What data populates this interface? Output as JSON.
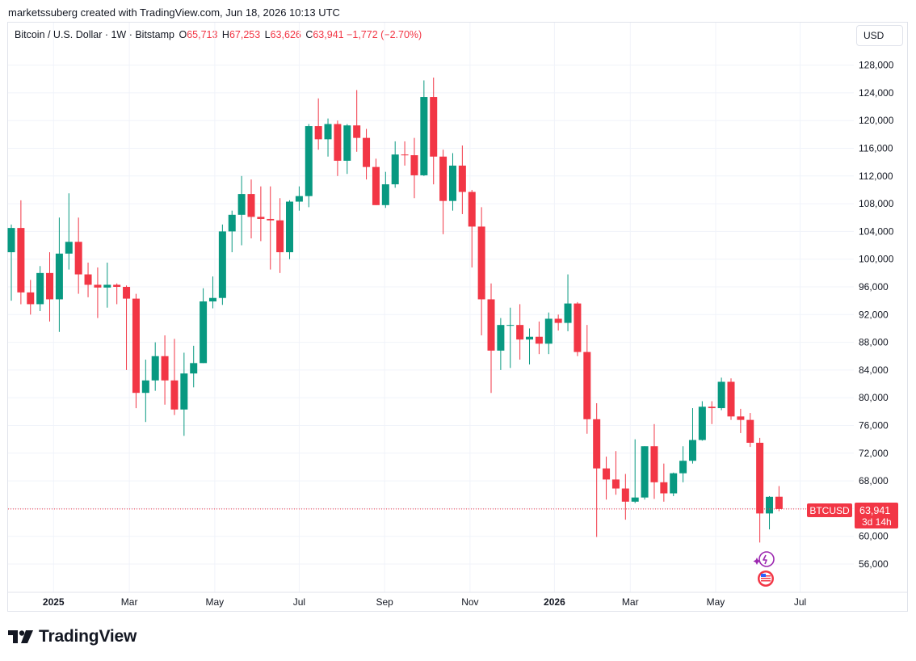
{
  "attribution": "marketssuberg created with TradingView.com, Jun 18, 2026 10:13 UTC",
  "legend": {
    "symbol": "Bitcoin / U.S. Dollar · 1W · Bitstamp",
    "o_label": "O",
    "o_value": "65,713",
    "h_label": "H",
    "h_value": "67,253",
    "l_label": "L",
    "l_value": "63,626",
    "c_label": "C",
    "c_value": "63,941",
    "change": "−1,772 (−2.70%)"
  },
  "currency_button": "USD",
  "price_tag": {
    "symbol": "BTCUSD",
    "price": "63,941",
    "countdown": "3d 14h"
  },
  "brand": "TradingView",
  "colors": {
    "up": "#089981",
    "down": "#f23645",
    "grid": "#f0f3fa",
    "text": "#131722"
  },
  "icons": [
    "tradingview-logo-icon",
    "ai-sparkle-icon",
    "us-flag-event-icon"
  ],
  "chart_data": {
    "type": "candlestick",
    "interval": "1W",
    "y_ticks": [
      56000,
      60000,
      64000,
      68000,
      72000,
      76000,
      80000,
      84000,
      88000,
      92000,
      96000,
      100000,
      104000,
      108000,
      112000,
      116000,
      120000,
      124000,
      128000
    ],
    "y_tick_labels": [
      "56,000",
      "60,000",
      "64,000",
      "68,000",
      "72,000",
      "76,000",
      "80,000",
      "84,000",
      "88,000",
      "92,000",
      "96,000",
      "100,000",
      "104,000",
      "108,000",
      "112,000",
      "116,000",
      "120,000",
      "124,000",
      "128,000"
    ],
    "x_labels": [
      {
        "label": "2025",
        "bold": true,
        "week": 4.4
      },
      {
        "label": "Mar",
        "bold": false,
        "week": 12.3
      },
      {
        "label": "May",
        "bold": false,
        "week": 21.2
      },
      {
        "label": "Jul",
        "bold": false,
        "week": 30.0
      },
      {
        "label": "Sep",
        "bold": false,
        "week": 38.9
      },
      {
        "label": "Nov",
        "bold": false,
        "week": 47.8
      },
      {
        "label": "2026",
        "bold": true,
        "week": 56.6
      },
      {
        "label": "Mar",
        "bold": false,
        "week": 64.5
      },
      {
        "label": "May",
        "bold": false,
        "week": 73.4
      },
      {
        "label": "Jul",
        "bold": false,
        "week": 82.2
      }
    ],
    "last_price": 63941,
    "candles": [
      {
        "o": 101000,
        "h": 105000,
        "l": 94000,
        "c": 104500
      },
      {
        "o": 104500,
        "h": 108500,
        "l": 93500,
        "c": 95200
      },
      {
        "o": 95200,
        "h": 97000,
        "l": 92000,
        "c": 93500
      },
      {
        "o": 93500,
        "h": 99000,
        "l": 92500,
        "c": 98000
      },
      {
        "o": 98000,
        "h": 101000,
        "l": 91000,
        "c": 94200
      },
      {
        "o": 94200,
        "h": 106000,
        "l": 89500,
        "c": 100800
      },
      {
        "o": 100800,
        "h": 109500,
        "l": 98500,
        "c": 102500
      },
      {
        "o": 102500,
        "h": 106000,
        "l": 95000,
        "c": 97800
      },
      {
        "o": 97800,
        "h": 99500,
        "l": 94500,
        "c": 96300
      },
      {
        "o": 96300,
        "h": 98800,
        "l": 91500,
        "c": 95900
      },
      {
        "o": 95900,
        "h": 99500,
        "l": 93000,
        "c": 96300
      },
      {
        "o": 96300,
        "h": 96500,
        "l": 93500,
        "c": 96000
      },
      {
        "o": 96000,
        "h": 96200,
        "l": 84000,
        "c": 94300
      },
      {
        "o": 94300,
        "h": 95000,
        "l": 78500,
        "c": 80700
      },
      {
        "o": 80700,
        "h": 85500,
        "l": 76500,
        "c": 82500
      },
      {
        "o": 82500,
        "h": 88000,
        "l": 81000,
        "c": 86000
      },
      {
        "o": 86000,
        "h": 89000,
        "l": 79000,
        "c": 82500
      },
      {
        "o": 82500,
        "h": 88500,
        "l": 77500,
        "c": 78300
      },
      {
        "o": 78300,
        "h": 86500,
        "l": 74500,
        "c": 83500
      },
      {
        "o": 83500,
        "h": 87500,
        "l": 81500,
        "c": 85000
      },
      {
        "o": 85000,
        "h": 95800,
        "l": 85000,
        "c": 93900
      },
      {
        "o": 93900,
        "h": 97500,
        "l": 92900,
        "c": 94400
      },
      {
        "o": 94400,
        "h": 105000,
        "l": 93400,
        "c": 104000
      },
      {
        "o": 104000,
        "h": 107000,
        "l": 101000,
        "c": 106400
      },
      {
        "o": 106400,
        "h": 112000,
        "l": 102000,
        "c": 109400
      },
      {
        "o": 109400,
        "h": 111500,
        "l": 103000,
        "c": 106100
      },
      {
        "o": 106100,
        "h": 110500,
        "l": 102600,
        "c": 105800
      },
      {
        "o": 105800,
        "h": 110500,
        "l": 98500,
        "c": 105600
      },
      {
        "o": 105600,
        "h": 108800,
        "l": 98000,
        "c": 101000
      },
      {
        "o": 101000,
        "h": 108500,
        "l": 100000,
        "c": 108300
      },
      {
        "o": 108300,
        "h": 110500,
        "l": 107000,
        "c": 109100
      },
      {
        "o": 109100,
        "h": 119500,
        "l": 107500,
        "c": 119200
      },
      {
        "o": 119200,
        "h": 123200,
        "l": 115800,
        "c": 117300
      },
      {
        "o": 117300,
        "h": 120300,
        "l": 114800,
        "c": 119500
      },
      {
        "o": 119500,
        "h": 120000,
        "l": 112000,
        "c": 114200
      },
      {
        "o": 114200,
        "h": 119500,
        "l": 112300,
        "c": 119300
      },
      {
        "o": 119300,
        "h": 124400,
        "l": 115500,
        "c": 117500
      },
      {
        "o": 117500,
        "h": 118800,
        "l": 111500,
        "c": 113300
      },
      {
        "o": 113300,
        "h": 114500,
        "l": 107800,
        "c": 107800
      },
      {
        "o": 107800,
        "h": 112600,
        "l": 107400,
        "c": 110800
      },
      {
        "o": 110800,
        "h": 117000,
        "l": 110300,
        "c": 115100
      },
      {
        "o": 115100,
        "h": 117000,
        "l": 113500,
        "c": 115000
      },
      {
        "o": 115000,
        "h": 117500,
        "l": 108800,
        "c": 112100
      },
      {
        "o": 112100,
        "h": 125800,
        "l": 112000,
        "c": 123400
      },
      {
        "o": 123400,
        "h": 126200,
        "l": 110800,
        "c": 114800
      },
      {
        "o": 114800,
        "h": 115800,
        "l": 103600,
        "c": 108400
      },
      {
        "o": 108400,
        "h": 115300,
        "l": 107000,
        "c": 113500
      },
      {
        "o": 113500,
        "h": 116400,
        "l": 106500,
        "c": 109700
      },
      {
        "o": 109700,
        "h": 110000,
        "l": 98800,
        "c": 104700
      },
      {
        "o": 104700,
        "h": 107500,
        "l": 89000,
        "c": 94200
      },
      {
        "o": 94200,
        "h": 96500,
        "l": 80700,
        "c": 86800
      },
      {
        "o": 86800,
        "h": 91500,
        "l": 84000,
        "c": 90500
      },
      {
        "o": 90500,
        "h": 93000,
        "l": 84300,
        "c": 90500
      },
      {
        "o": 90500,
        "h": 93500,
        "l": 85500,
        "c": 88400
      },
      {
        "o": 88400,
        "h": 90000,
        "l": 84800,
        "c": 88800
      },
      {
        "o": 88800,
        "h": 91000,
        "l": 86300,
        "c": 87800
      },
      {
        "o": 87800,
        "h": 92300,
        "l": 86300,
        "c": 91400
      },
      {
        "o": 91400,
        "h": 92000,
        "l": 89700,
        "c": 90800
      },
      {
        "o": 90800,
        "h": 97800,
        "l": 89600,
        "c": 93600
      },
      {
        "o": 93600,
        "h": 93800,
        "l": 86000,
        "c": 86600
      },
      {
        "o": 86600,
        "h": 90500,
        "l": 74800,
        "c": 76900
      },
      {
        "o": 76900,
        "h": 79200,
        "l": 59900,
        "c": 69800
      },
      {
        "o": 69800,
        "h": 71500,
        "l": 65300,
        "c": 68200
      },
      {
        "o": 68200,
        "h": 72300,
        "l": 66000,
        "c": 66900
      },
      {
        "o": 66900,
        "h": 69000,
        "l": 62400,
        "c": 65000
      },
      {
        "o": 65000,
        "h": 74000,
        "l": 64800,
        "c": 65600
      },
      {
        "o": 65600,
        "h": 73000,
        "l": 65300,
        "c": 73000
      },
      {
        "o": 73000,
        "h": 76200,
        "l": 65400,
        "c": 67800
      },
      {
        "o": 67800,
        "h": 70500,
        "l": 65000,
        "c": 66200
      },
      {
        "o": 66200,
        "h": 69200,
        "l": 65800,
        "c": 69100
      },
      {
        "o": 69100,
        "h": 73000,
        "l": 67800,
        "c": 70900
      },
      {
        "o": 70900,
        "h": 78500,
        "l": 70500,
        "c": 73900
      },
      {
        "o": 73900,
        "h": 79500,
        "l": 73800,
        "c": 78700
      },
      {
        "o": 78700,
        "h": 79500,
        "l": 76200,
        "c": 78500
      },
      {
        "o": 78500,
        "h": 82900,
        "l": 78200,
        "c": 82300
      },
      {
        "o": 82300,
        "h": 82800,
        "l": 76800,
        "c": 77300
      },
      {
        "o": 77300,
        "h": 78400,
        "l": 74900,
        "c": 76800
      },
      {
        "o": 76800,
        "h": 77800,
        "l": 72900,
        "c": 73500
      },
      {
        "o": 73500,
        "h": 74200,
        "l": 59100,
        "c": 63300
      },
      {
        "o": 63300,
        "h": 65800,
        "l": 61000,
        "c": 65700
      },
      {
        "o": 65713,
        "h": 67253,
        "l": 63626,
        "c": 63941
      }
    ]
  }
}
